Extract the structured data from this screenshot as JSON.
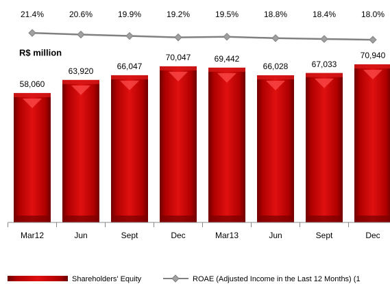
{
  "chart_data": {
    "type": "bar",
    "unit_label": "R$ million",
    "categories": [
      "Mar12",
      "Jun",
      "Sept",
      "Dec",
      "Mar13",
      "Jun",
      "Sept",
      "Dec"
    ],
    "ylim": [
      0,
      80000
    ],
    "y2lim": [
      -73,
      31
    ],
    "series": [
      {
        "name": "Shareholders' Equity",
        "color": "#c00000",
        "values": [
          58060,
          63920,
          66047,
          70047,
          69442,
          66028,
          67033,
          70940
        ],
        "value_labels": [
          "58,060",
          "63,920",
          "66,047",
          "70,047",
          "69,442",
          "66,028",
          "67,033",
          "70,940"
        ]
      },
      {
        "name": "ROAE (Adjusted Income in the Last 12 Months) (1",
        "color": "#808080",
        "type": "line",
        "axis": "y2",
        "values": [
          21.4,
          20.6,
          19.9,
          19.2,
          19.5,
          18.8,
          18.4,
          18.0
        ],
        "value_labels": [
          "21.4%",
          "20.6%",
          "19.9%",
          "19.2%",
          "19.5%",
          "18.8%",
          "18.4%",
          "18.0%"
        ]
      }
    ]
  }
}
